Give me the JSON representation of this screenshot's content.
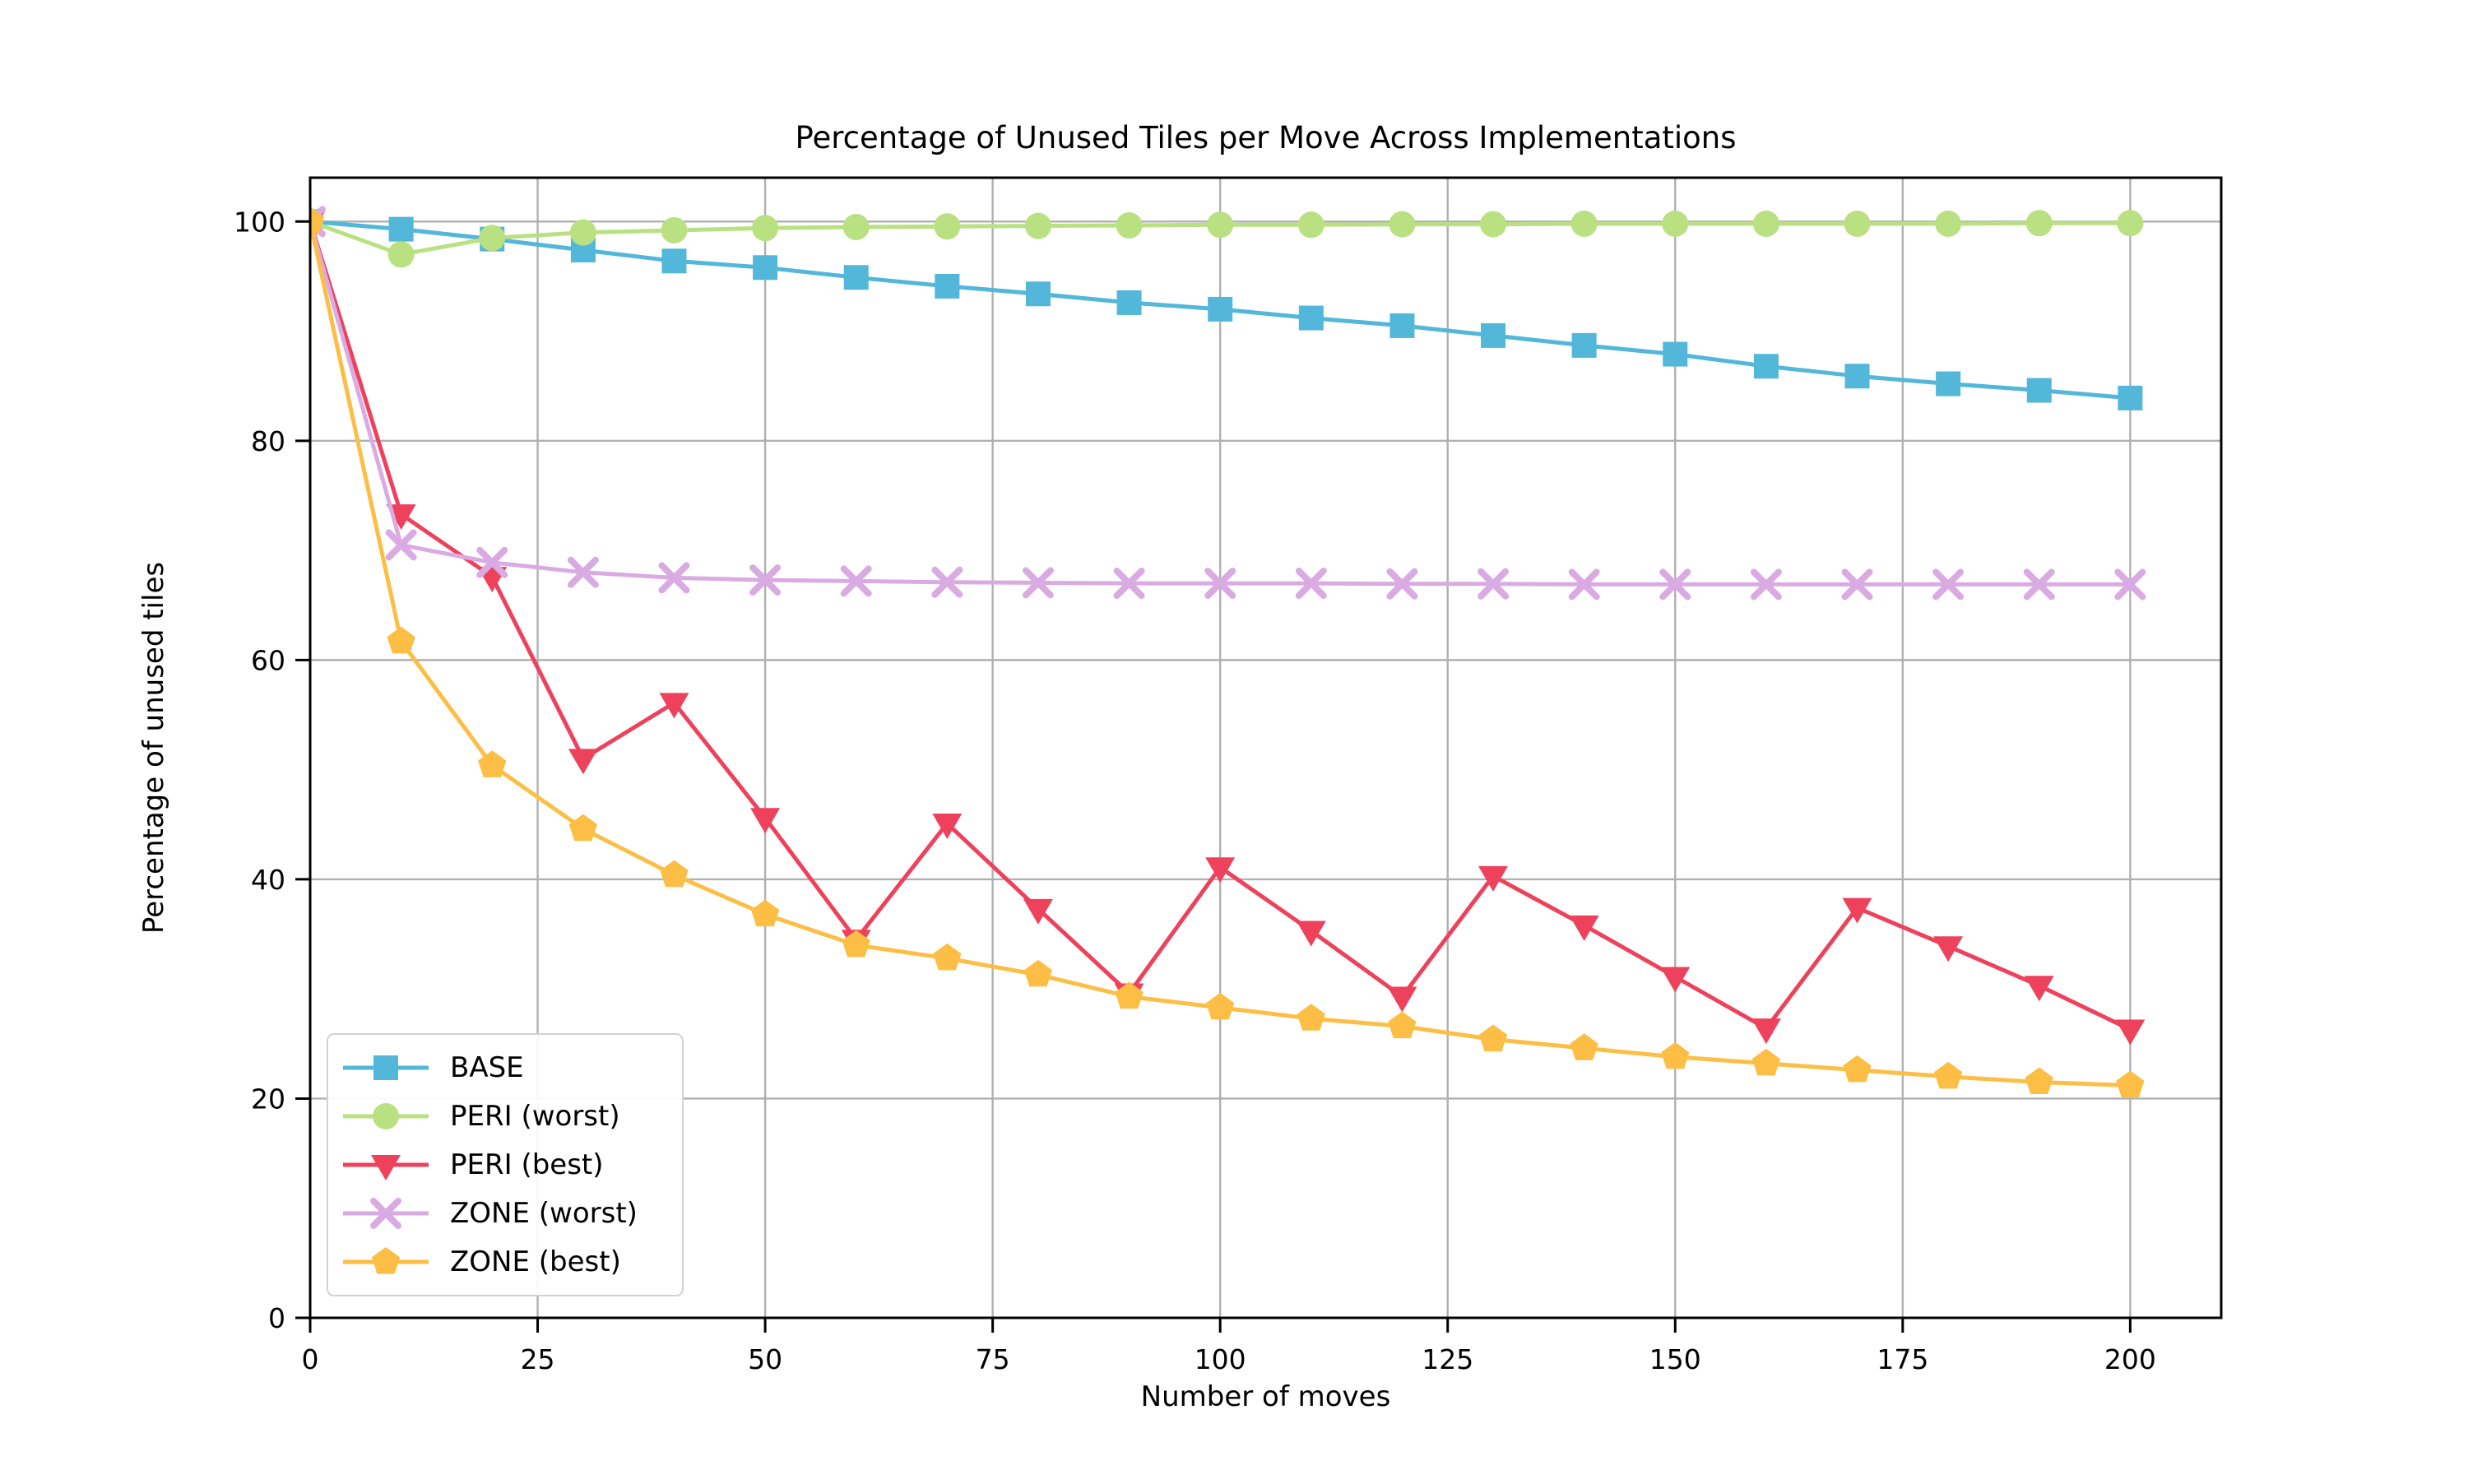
{
  "chart_data": {
    "type": "line",
    "title": "Percentage of Unused Tiles per Move Across Implementations",
    "xlabel": "Number of moves",
    "ylabel": "Percentage of unused tiles",
    "grid": true,
    "legend_position": "lower left",
    "xlim": [
      0,
      210
    ],
    "ylim": [
      0,
      104
    ],
    "xticks": [
      0,
      25,
      50,
      75,
      100,
      125,
      150,
      175,
      200
    ],
    "yticks": [
      0,
      20,
      40,
      60,
      80,
      100
    ],
    "x": [
      0,
      10,
      20,
      30,
      40,
      50,
      60,
      70,
      80,
      90,
      100,
      110,
      120,
      130,
      140,
      150,
      160,
      170,
      180,
      190,
      200
    ],
    "series": [
      {
        "name": "BASE",
        "marker": "square",
        "color": "#52b7d9",
        "values": [
          100,
          99.3,
          98.4,
          97.4,
          96.4,
          95.8,
          94.9,
          94.1,
          93.4,
          92.6,
          92.0,
          91.2,
          90.5,
          89.6,
          88.7,
          87.9,
          86.8,
          85.9,
          85.2,
          84.6,
          83.9
        ]
      },
      {
        "name": "PERI (worst)",
        "marker": "circle",
        "color": "#b9e181",
        "values": [
          100,
          97.0,
          98.5,
          99.0,
          99.2,
          99.4,
          99.5,
          99.55,
          99.6,
          99.65,
          99.7,
          99.7,
          99.75,
          99.75,
          99.8,
          99.8,
          99.8,
          99.8,
          99.8,
          99.85,
          99.85
        ]
      },
      {
        "name": "PERI (best)",
        "marker": "triangle-down",
        "color": "#ee425c",
        "values": [
          100,
          73.3,
          67.6,
          51.0,
          56.1,
          45.6,
          34.5,
          45.1,
          37.3,
          29.6,
          41.1,
          35.3,
          29.3,
          40.3,
          35.8,
          31.1,
          26.4,
          37.4,
          33.9,
          30.3,
          26.3
        ]
      },
      {
        "name": "ZONE (worst)",
        "marker": "x",
        "color": "#d9abe2",
        "values": [
          100,
          70.5,
          68.9,
          68.0,
          67.5,
          67.3,
          67.2,
          67.1,
          67.05,
          67.0,
          67.0,
          67.0,
          66.95,
          66.95,
          66.9,
          66.9,
          66.9,
          66.9,
          66.9,
          66.9,
          66.9
        ]
      },
      {
        "name": "ZONE (best)",
        "marker": "pentagon",
        "color": "#fcbe44",
        "values": [
          100,
          61.7,
          50.4,
          44.6,
          40.4,
          36.8,
          34.0,
          32.8,
          31.3,
          29.3,
          28.3,
          27.3,
          26.6,
          25.4,
          24.6,
          23.8,
          23.2,
          22.6,
          22.0,
          21.5,
          21.2
        ]
      }
    ],
    "colors": {
      "grid": "#b0b0b0",
      "spine": "#000000",
      "text": "#000000",
      "background": "#ffffff",
      "legend_border": "#d2d2d2"
    }
  }
}
